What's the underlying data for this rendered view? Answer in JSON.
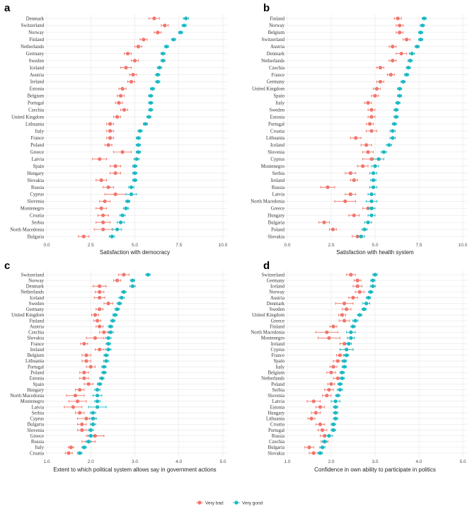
{
  "legend": {
    "items": [
      {
        "label": "Very bad",
        "color": "#f0766d"
      },
      {
        "label": "Very good",
        "color": "#1ab8c2"
      }
    ]
  },
  "chart_data": [
    {
      "type": "dot-errorbar",
      "panel_label": "a",
      "xlabel": "Satisfaction with democracy",
      "xlim": [
        0,
        10
      ],
      "xticks": [
        "0.0",
        "2.5",
        "5.0",
        "7.5",
        "10.0"
      ],
      "categories": [
        "Denmark",
        "Switzerland",
        "Norway",
        "Finland",
        "Netherlands",
        "Germany",
        "Sweden",
        "Iceland",
        "Austria",
        "Ireland",
        "Estonia",
        "Belgium",
        "Portugal",
        "Czechia",
        "United Kingdom",
        "Lithuania",
        "Italy",
        "France",
        "Poland",
        "Greece",
        "Latvia",
        "Spain",
        "Hungary",
        "Slovakia",
        "Russia",
        "Cyprus",
        "Slovenia",
        "Montenegro",
        "Croatia",
        "Serbia",
        "North Macedonia",
        "Bulgaria"
      ],
      "series": [
        {
          "name": "Very bad",
          "values": [
            6.1,
            6.7,
            6.3,
            5.5,
            5.2,
            4.6,
            5.0,
            4.5,
            4.9,
            4.8,
            4.3,
            4.2,
            4.1,
            4.4,
            4.0,
            3.6,
            3.6,
            3.6,
            3.5,
            4.3,
            3.0,
            3.9,
            3.9,
            3.1,
            3.5,
            3.9,
            3.3,
            3.1,
            3.2,
            3.2,
            3.2,
            2.1
          ],
          "err": [
            0.3,
            0.2,
            0.2,
            0.2,
            0.2,
            0.2,
            0.2,
            0.3,
            0.2,
            0.2,
            0.2,
            0.2,
            0.2,
            0.2,
            0.2,
            0.2,
            0.2,
            0.2,
            0.2,
            0.5,
            0.4,
            0.3,
            0.3,
            0.3,
            0.3,
            0.6,
            0.3,
            0.3,
            0.3,
            0.4,
            0.5,
            0.3
          ]
        },
        {
          "name": "Very good",
          "values": [
            7.9,
            7.8,
            7.6,
            7.2,
            6.8,
            6.6,
            6.6,
            6.4,
            6.3,
            6.3,
            6.0,
            5.9,
            5.9,
            5.9,
            5.8,
            5.6,
            5.3,
            5.2,
            5.2,
            5.2,
            5.1,
            5.0,
            5.0,
            5.0,
            4.8,
            4.8,
            4.6,
            4.5,
            4.3,
            4.2,
            4.0,
            3.7
          ],
          "err": [
            0.15,
            0.12,
            0.12,
            0.12,
            0.12,
            0.12,
            0.12,
            0.12,
            0.12,
            0.12,
            0.12,
            0.12,
            0.12,
            0.12,
            0.12,
            0.12,
            0.12,
            0.12,
            0.12,
            0.12,
            0.15,
            0.12,
            0.12,
            0.12,
            0.15,
            0.3,
            0.12,
            0.15,
            0.15,
            0.2,
            0.25,
            0.15
          ]
        }
      ]
    },
    {
      "type": "dot-errorbar",
      "panel_label": "b",
      "xlabel": "Satisfaction with health system",
      "xlim": [
        0,
        10
      ],
      "xticks": [
        "0.0",
        "2.5",
        "5.0",
        "7.5",
        "10.0"
      ],
      "categories": [
        "Finland",
        "Norway",
        "Belgium",
        "Switzerland",
        "Austria",
        "Denmark",
        "Netherlands",
        "Czechia",
        "France",
        "Germany",
        "United Kingdom",
        "Spain",
        "Italy",
        "Sweden",
        "Estonia",
        "Portugal",
        "Croatia",
        "Lithuania",
        "Iceland",
        "Slovenia",
        "Cyprus",
        "Montenegro",
        "Serbia",
        "Ireland",
        "Russia",
        "Latvia",
        "North Macedonia",
        "Greece",
        "Hungary",
        "Bulgaria",
        "Poland",
        "Slovakia"
      ],
      "series": [
        {
          "name": "Very bad",
          "values": [
            6.3,
            6.4,
            6.4,
            6.8,
            6.0,
            6.5,
            6.0,
            5.3,
            5.9,
            5.3,
            5.1,
            5.0,
            4.6,
            4.8,
            4.8,
            4.7,
            4.8,
            3.9,
            4.5,
            4.6,
            4.8,
            4.3,
            3.6,
            3.8,
            2.3,
            3.6,
            3.3,
            4.6,
            3.8,
            2.1,
            2.6,
            4.0
          ],
          "err": [
            0.2,
            0.2,
            0.2,
            0.2,
            0.2,
            0.3,
            0.2,
            0.2,
            0.2,
            0.2,
            0.2,
            0.2,
            0.2,
            0.2,
            0.2,
            0.2,
            0.3,
            0.3,
            0.3,
            0.3,
            0.5,
            0.3,
            0.3,
            0.2,
            0.4,
            0.3,
            0.6,
            0.3,
            0.3,
            0.3,
            0.2,
            0.3
          ]
        },
        {
          "name": "Very good",
          "values": [
            7.8,
            7.7,
            7.6,
            7.6,
            7.4,
            7.1,
            7.0,
            6.9,
            6.8,
            6.6,
            6.4,
            6.4,
            6.3,
            6.2,
            6.2,
            6.1,
            6.0,
            6.0,
            5.8,
            5.5,
            5.2,
            5.0,
            4.9,
            4.9,
            4.9,
            4.8,
            4.8,
            4.8,
            4.8,
            4.6,
            4.4,
            4.2
          ],
          "err": [
            0.12,
            0.12,
            0.12,
            0.12,
            0.12,
            0.15,
            0.12,
            0.12,
            0.12,
            0.12,
            0.12,
            0.12,
            0.12,
            0.12,
            0.12,
            0.12,
            0.15,
            0.15,
            0.15,
            0.15,
            0.3,
            0.2,
            0.2,
            0.15,
            0.2,
            0.2,
            0.3,
            0.2,
            0.2,
            0.2,
            0.15,
            0.2
          ]
        }
      ]
    },
    {
      "type": "dot-errorbar",
      "panel_label": "c",
      "xlabel": "Extent to which political system allows say in government actions",
      "xlim": [
        1,
        5
      ],
      "xticks": [
        "1.0",
        "2.0",
        "3.0",
        "4.0",
        "5.0"
      ],
      "categories": [
        "Switzerland",
        "Norway",
        "Denmark",
        "Netherlands",
        "Iceland",
        "Sweden",
        "Germany",
        "United Kingdom",
        "Finland",
        "Austria",
        "Czechia",
        "Slovakia",
        "France",
        "Ireland",
        "Belgium",
        "Lithuania",
        "Portugal",
        "Poland",
        "Estonia",
        "Spain",
        "Hungary",
        "North Macedonia",
        "Montenegro",
        "Latvia",
        "Serbia",
        "Cyprus",
        "Bulgaria",
        "Slovenia",
        "Greece",
        "Russia",
        "Italy",
        "Croatia"
      ],
      "series": [
        {
          "name": "Very bad",
          "values": [
            2.75,
            2.6,
            2.2,
            2.2,
            2.2,
            2.4,
            2.2,
            2.1,
            2.15,
            2.2,
            2.3,
            2.1,
            1.85,
            2.2,
            1.9,
            1.9,
            2.0,
            1.85,
            1.85,
            1.95,
            1.75,
            1.65,
            1.7,
            1.6,
            1.75,
            1.9,
            1.8,
            1.8,
            2.1,
            1.95,
            1.55,
            1.5
          ],
          "err": [
            0.12,
            0.08,
            0.15,
            0.1,
            0.12,
            0.1,
            0.08,
            0.08,
            0.08,
            0.08,
            0.1,
            0.2,
            0.08,
            0.1,
            0.1,
            0.1,
            0.1,
            0.1,
            0.1,
            0.1,
            0.1,
            0.2,
            0.2,
            0.2,
            0.1,
            0.2,
            0.1,
            0.1,
            0.2,
            0.15,
            0.06,
            0.08
          ]
        },
        {
          "name": "Very good",
          "values": [
            3.3,
            2.95,
            2.95,
            2.75,
            2.7,
            2.65,
            2.6,
            2.55,
            2.5,
            2.45,
            2.45,
            2.4,
            2.4,
            2.4,
            2.35,
            2.35,
            2.3,
            2.3,
            2.25,
            2.2,
            2.15,
            2.15,
            2.15,
            2.15,
            2.05,
            2.05,
            2.05,
            2.0,
            2.0,
            1.95,
            1.85,
            1.75
          ],
          "err": [
            0.05,
            0.05,
            0.06,
            0.05,
            0.06,
            0.05,
            0.05,
            0.05,
            0.05,
            0.05,
            0.06,
            0.06,
            0.05,
            0.06,
            0.05,
            0.06,
            0.05,
            0.05,
            0.05,
            0.05,
            0.06,
            0.1,
            0.06,
            0.2,
            0.06,
            0.08,
            0.06,
            0.06,
            0.06,
            0.06,
            0.05,
            0.05
          ]
        }
      ]
    },
    {
      "type": "dot-errorbar",
      "panel_label": "d",
      "xlabel": "Confidence in own ability to participate in politics",
      "xlim": [
        1,
        5
      ],
      "xticks": [
        "1.0",
        "2.0",
        "3.0",
        "4.0",
        "5.0"
      ],
      "categories": [
        "Switzerland",
        "Germany",
        "Iceland",
        "Norway",
        "Austria",
        "Denmark",
        "Sweden",
        "United Kingdom",
        "Greece",
        "Finland",
        "North Macedonia",
        "Montenegro",
        "Ireland",
        "Cyprus",
        "France",
        "Spain",
        "Italy",
        "Belgium",
        "Netherlands",
        "Poland",
        "Serbia",
        "Slovenia",
        "Latvia",
        "Estonia",
        "Hungary",
        "Lithuania",
        "Croatia",
        "Portugal",
        "Russia",
        "Czechia",
        "Bulgaria",
        "Slovakia"
      ],
      "series": [
        {
          "name": "Very bad",
          "values": [
            2.45,
            2.6,
            2.6,
            2.65,
            2.5,
            2.3,
            2.35,
            2.25,
            2.3,
            2.05,
            1.9,
            1.95,
            2.3,
            2.35,
            2.2,
            2.15,
            2.05,
            2.0,
            2.15,
            2.0,
            1.95,
            1.9,
            1.6,
            1.75,
            1.65,
            1.55,
            1.75,
            1.8,
            1.85,
            1.85,
            1.5,
            1.6
          ],
          "err": [
            0.1,
            0.08,
            0.1,
            0.1,
            0.1,
            0.2,
            0.1,
            0.08,
            0.12,
            0.08,
            0.25,
            0.25,
            0.1,
            0.15,
            0.08,
            0.1,
            0.08,
            0.1,
            0.1,
            0.08,
            0.1,
            0.1,
            0.15,
            0.1,
            0.1,
            0.08,
            0.1,
            0.1,
            0.1,
            0.08,
            0.1,
            0.1
          ]
        },
        {
          "name": "Very good",
          "values": [
            3.0,
            2.95,
            2.95,
            2.9,
            2.85,
            2.8,
            2.75,
            2.65,
            2.55,
            2.5,
            2.45,
            2.45,
            2.4,
            2.35,
            2.35,
            2.3,
            2.3,
            2.25,
            2.25,
            2.2,
            2.2,
            2.15,
            2.1,
            2.1,
            2.1,
            2.1,
            2.05,
            2.05,
            1.95,
            1.85,
            1.8,
            1.75
          ],
          "err": [
            0.05,
            0.05,
            0.06,
            0.05,
            0.05,
            0.08,
            0.05,
            0.05,
            0.06,
            0.05,
            0.1,
            0.08,
            0.06,
            0.15,
            0.05,
            0.05,
            0.05,
            0.05,
            0.05,
            0.05,
            0.06,
            0.05,
            0.1,
            0.05,
            0.05,
            0.05,
            0.05,
            0.05,
            0.08,
            0.05,
            0.06,
            0.05
          ]
        }
      ]
    }
  ]
}
